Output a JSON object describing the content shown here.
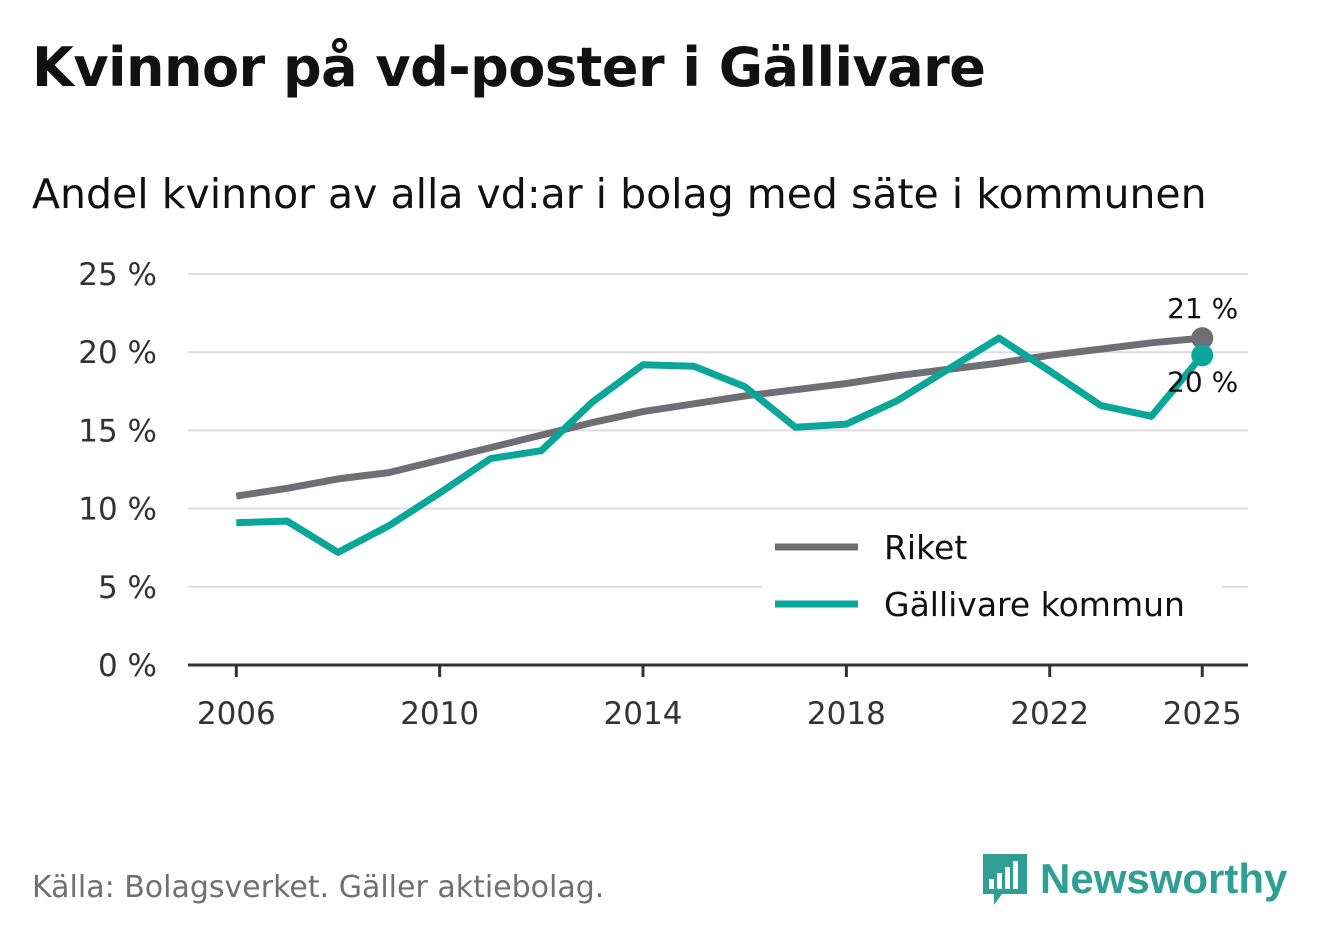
{
  "title": "Kvinnor på vd-poster i Gällivare",
  "subtitle": "Andel kvinnor av alla vd:ar i bolag med säte i kommunen",
  "source": "Källa: Bolagsverket. Gäller aktiebolag.",
  "brand": "Newsworthy",
  "colors": {
    "riket": "#6f6e73",
    "gallivare": "#0aa69a",
    "grid": "#dddddd",
    "axis": "#333333"
  },
  "chart_data": {
    "type": "line",
    "x": [
      2006,
      2007,
      2008,
      2009,
      2010,
      2011,
      2012,
      2013,
      2014,
      2015,
      2016,
      2017,
      2018,
      2019,
      2020,
      2021,
      2022,
      2023,
      2024,
      2025
    ],
    "series": [
      {
        "name": "Riket",
        "values": [
          10.8,
          11.3,
          11.9,
          12.3,
          13.1,
          13.9,
          14.7,
          15.5,
          16.2,
          16.7,
          17.2,
          17.6,
          18.0,
          18.5,
          18.9,
          19.3,
          19.8,
          20.2,
          20.6,
          20.9
        ]
      },
      {
        "name": "Gällivare kommun",
        "values": [
          9.1,
          9.2,
          7.2,
          8.9,
          11.0,
          13.2,
          13.7,
          16.8,
          19.2,
          19.1,
          17.8,
          15.2,
          15.4,
          16.9,
          18.9,
          20.9,
          18.8,
          16.6,
          15.9,
          19.8
        ]
      }
    ],
    "xticks": [
      2006,
      2010,
      2014,
      2018,
      2022,
      2025
    ],
    "xtick_labels": [
      "2006",
      "2010",
      "2014",
      "2018",
      "2022",
      "2025"
    ],
    "yticks": [
      0,
      5,
      10,
      15,
      20,
      25
    ],
    "ytick_labels": [
      "0 %",
      "5 %",
      "10 %",
      "15 %",
      "20 %",
      "25 %"
    ],
    "ylim": [
      0,
      25
    ],
    "xlim": [
      2005.05,
      2025.9
    ],
    "end_labels": [
      {
        "series": "Riket",
        "text": "21 %"
      },
      {
        "series": "Gällivare kommun",
        "text": "20 %"
      }
    ],
    "legend": [
      "Riket",
      "Gällivare kommun"
    ],
    "legend_position": "bottom-right",
    "grid": true,
    "xlabel": "",
    "ylabel": ""
  }
}
